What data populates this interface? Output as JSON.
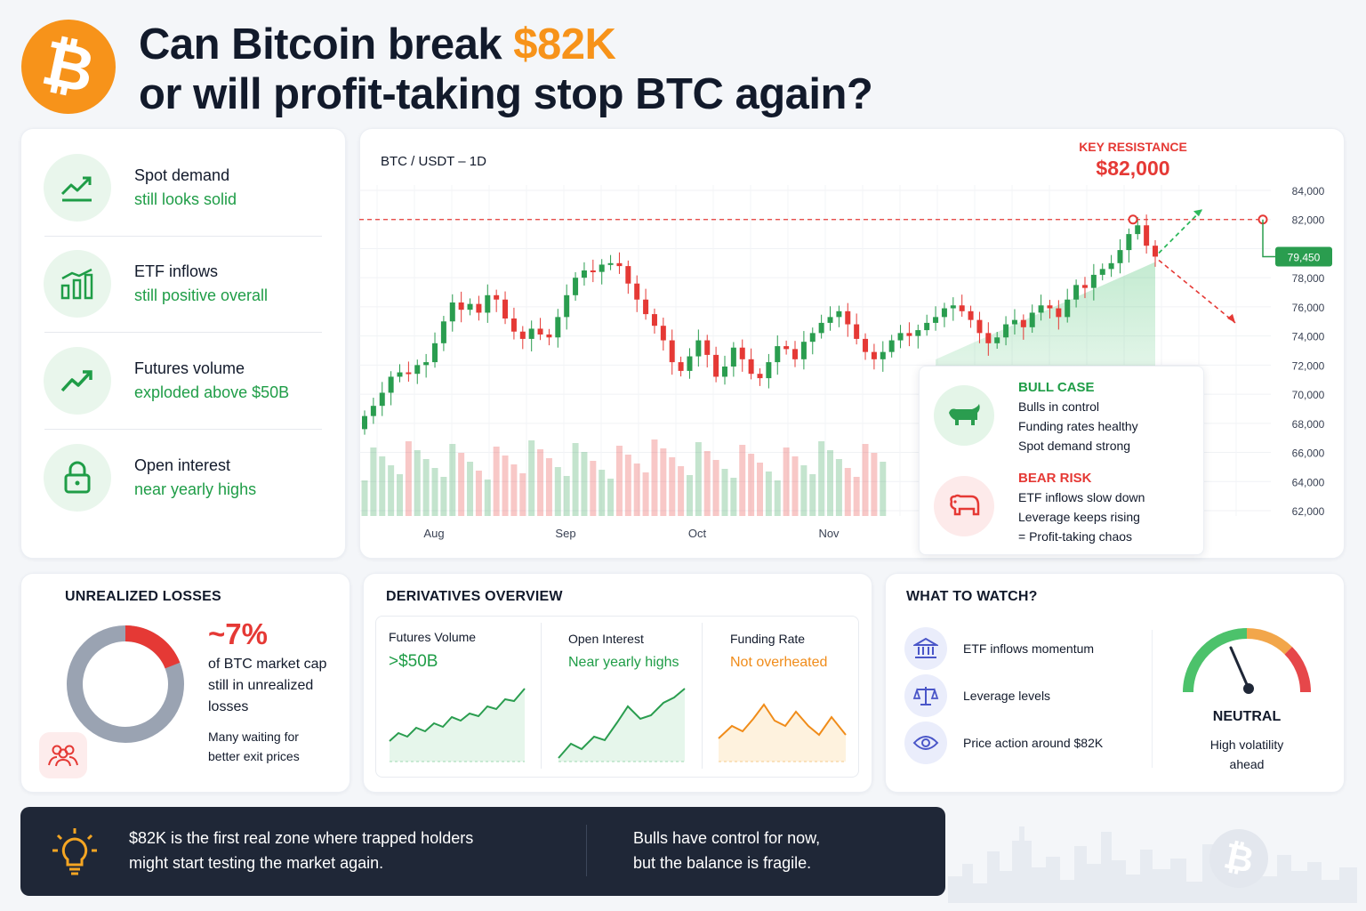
{
  "header": {
    "title_part1": "Can Bitcoin break ",
    "title_highlight": "$82K",
    "title_line2": "or will profit-taking stop BTC again?",
    "logo_glyph": "₿"
  },
  "colors": {
    "orange": "#f7931a",
    "green": "#1f9d47",
    "red": "#e53935",
    "dark": "#1f2737"
  },
  "metrics": [
    {
      "title": "Spot demand",
      "sub": "still looks solid",
      "icon": "trend-up-chart-icon"
    },
    {
      "title": "ETF inflows",
      "sub": "still positive overall",
      "icon": "bar-chart-icon"
    },
    {
      "title": "Futures volume",
      "sub": "exploded above $50B",
      "icon": "trend-up-arrow-icon"
    },
    {
      "title": "Open interest",
      "sub": "near yearly highs",
      "icon": "lock-icon"
    }
  ],
  "chart_data": {
    "type": "candlestick",
    "title": "BTC / USDT – 1D",
    "x_labels": [
      "Aug",
      "Sep",
      "Oct",
      "Nov"
    ],
    "y_ticks": [
      "84,000",
      "82,000",
      "79,450",
      "78,000",
      "76,000",
      "74,000",
      "72,000",
      "70,000",
      "68,000",
      "66,000",
      "64,000",
      "62,000"
    ],
    "ylim": [
      62000,
      84000
    ],
    "resistance_label": "KEY RESISTANCE",
    "resistance_value": "$82,000",
    "resistance_level": 82000,
    "current_price": 79450,
    "current_price_label": "79,450",
    "closes": [
      68500,
      69200,
      70100,
      71200,
      71500,
      71400,
      72000,
      72200,
      73500,
      75000,
      76300,
      75800,
      76200,
      75600,
      76800,
      76500,
      75200,
      74300,
      73800,
      74500,
      74100,
      73900,
      75300,
      76800,
      78000,
      78500,
      78400,
      78900,
      79000,
      78800,
      77600,
      76500,
      75500,
      74700,
      73700,
      72200,
      71600,
      72600,
      73700,
      72700,
      71200,
      71900,
      73200,
      72400,
      71400,
      71100,
      72200,
      73300,
      73100,
      72400,
      73600,
      74200,
      74900,
      75300,
      75700,
      74800,
      73800,
      72900,
      72400,
      72900,
      73700,
      74200,
      74000,
      74400,
      74900,
      75300,
      75900,
      76100,
      75700,
      75100,
      74200,
      73500,
      73900,
      74800,
      75100,
      74600,
      75600,
      76100,
      75900,
      75300,
      76500,
      77500,
      77300,
      78200,
      78600,
      79000,
      79900,
      81000,
      81600,
      80200,
      79450
    ],
    "volume_caption": ""
  },
  "cases": {
    "bull_title": "BULL CASE",
    "bull_lines": [
      "Bulls in control",
      "Funding rates healthy",
      "Spot demand strong"
    ],
    "bear_title": "BEAR RISK",
    "bear_lines": [
      "ETF inflows slow down",
      "Leverage keeps rising",
      "= Profit-taking chaos"
    ]
  },
  "losses": {
    "heading": "UNREALIZED LOSSES",
    "pct": "~7%",
    "pct_value": 0.07,
    "desc_lines": [
      "of BTC market cap",
      "still in unrealized",
      "losses"
    ],
    "note_lines": [
      "Many waiting for",
      "better exit prices"
    ]
  },
  "derivatives": {
    "heading": "DERIVATIVES OVERVIEW",
    "items": [
      {
        "label": "Futures Volume",
        "value": ">$50B",
        "color": "#1f9d47"
      },
      {
        "label": "Open Interest",
        "value": "Near yearly highs",
        "color": "#1f9d47"
      },
      {
        "label": "Funding Rate",
        "value": "Not overheated",
        "color": "#f08c1a"
      }
    ]
  },
  "watch": {
    "heading": "WHAT TO WATCH?",
    "items": [
      {
        "label": "ETF inflows momentum",
        "icon": "bank-icon"
      },
      {
        "label": "Leverage levels",
        "icon": "scale-icon"
      },
      {
        "label": "Price action around $82K",
        "icon": "eye-icon"
      }
    ],
    "gauge_label": "NEUTRAL",
    "gauge_sub": [
      "High volatility",
      "ahead"
    ]
  },
  "footer": {
    "left": [
      "$82K is the first real zone where trapped holders",
      "might start testing the market again."
    ],
    "right": [
      "Bulls have control for now,",
      "but the balance is fragile."
    ]
  }
}
